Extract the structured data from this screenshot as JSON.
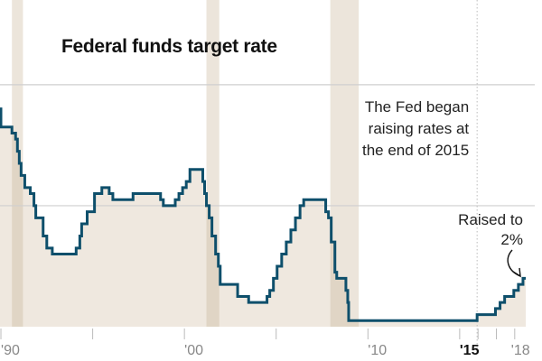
{
  "chart_data": {
    "type": "area",
    "title": "Federal funds target rate",
    "xlabel": "",
    "ylabel": "",
    "xlim": [
      1989.95,
      2018.6
    ],
    "ylim": [
      0,
      13.5
    ],
    "grid": true,
    "gridlines_y": [
      5,
      10
    ],
    "x_ticks": [
      {
        "value": 1990,
        "label": "'90",
        "bold": false
      },
      {
        "value": 1995,
        "label": "",
        "bold": false
      },
      {
        "value": 2000,
        "label": "'00",
        "bold": false
      },
      {
        "value": 2005,
        "label": "",
        "bold": false
      },
      {
        "value": 2010,
        "label": "'10",
        "bold": false
      },
      {
        "value": 2015,
        "label": "'15",
        "bold": true
      },
      {
        "value": 2016,
        "label": "",
        "bold": false
      },
      {
        "value": 2017,
        "label": "",
        "bold": false
      },
      {
        "value": 2018,
        "label": "'18",
        "bold": false
      }
    ],
    "recessions": [
      [
        1990.6,
        1991.2
      ],
      [
        2001.2,
        2001.9
      ],
      [
        2007.95,
        2009.5
      ]
    ],
    "reference_line": {
      "x": 2015.95,
      "style": "dotted"
    },
    "series": [
      {
        "name": "Federal funds target rate",
        "color": "#0e4f6b",
        "fill": "#efe8df",
        "steps": [
          [
            1989.95,
            9.0
          ],
          [
            1990.0,
            8.25
          ],
          [
            1990.6,
            8.0
          ],
          [
            1990.8,
            7.75
          ],
          [
            1990.9,
            7.25
          ],
          [
            1991.0,
            6.75
          ],
          [
            1991.1,
            6.25
          ],
          [
            1991.3,
            5.75
          ],
          [
            1991.6,
            5.5
          ],
          [
            1991.8,
            5.0
          ],
          [
            1991.9,
            4.5
          ],
          [
            1992.3,
            3.75
          ],
          [
            1992.5,
            3.25
          ],
          [
            1992.8,
            3.0
          ],
          [
            1994.1,
            3.25
          ],
          [
            1994.3,
            3.75
          ],
          [
            1994.4,
            4.25
          ],
          [
            1994.7,
            4.75
          ],
          [
            1995.1,
            5.5
          ],
          [
            1995.5,
            5.75
          ],
          [
            1995.9,
            5.5
          ],
          [
            1996.1,
            5.25
          ],
          [
            1997.2,
            5.5
          ],
          [
            1998.7,
            5.25
          ],
          [
            1998.85,
            5.0
          ],
          [
            1999.5,
            5.25
          ],
          [
            1999.7,
            5.5
          ],
          [
            1999.9,
            5.75
          ],
          [
            2000.1,
            6.0
          ],
          [
            2000.3,
            6.5
          ],
          [
            2001.0,
            6.0
          ],
          [
            2001.1,
            5.5
          ],
          [
            2001.2,
            5.0
          ],
          [
            2001.35,
            4.5
          ],
          [
            2001.5,
            3.75
          ],
          [
            2001.7,
            3.0
          ],
          [
            2001.85,
            2.5
          ],
          [
            2001.95,
            1.75
          ],
          [
            2002.9,
            1.25
          ],
          [
            2003.5,
            1.0
          ],
          [
            2004.5,
            1.25
          ],
          [
            2004.65,
            1.5
          ],
          [
            2004.85,
            2.0
          ],
          [
            2005.05,
            2.5
          ],
          [
            2005.3,
            3.0
          ],
          [
            2005.55,
            3.5
          ],
          [
            2005.8,
            4.0
          ],
          [
            2006.05,
            4.5
          ],
          [
            2006.3,
            5.0
          ],
          [
            2006.5,
            5.25
          ],
          [
            2007.7,
            4.75
          ],
          [
            2007.85,
            4.5
          ],
          [
            2008.0,
            3.5
          ],
          [
            2008.2,
            2.25
          ],
          [
            2008.3,
            2.0
          ],
          [
            2008.8,
            1.5
          ],
          [
            2008.9,
            1.0
          ],
          [
            2008.95,
            0.25
          ],
          [
            2015.95,
            0.5
          ],
          [
            2016.95,
            0.75
          ],
          [
            2017.2,
            1.0
          ],
          [
            2017.45,
            1.25
          ],
          [
            2017.95,
            1.5
          ],
          [
            2018.2,
            1.75
          ],
          [
            2018.45,
            2.0
          ],
          [
            2018.6,
            2.0
          ]
        ]
      }
    ],
    "annotations": [
      {
        "text": [
          "The Fed began",
          "raising rates at",
          "the end of 2015"
        ],
        "anchor_x": 2015.95,
        "align": "right"
      },
      {
        "text": [
          "Raised to",
          "2%"
        ],
        "anchor_x": 2018.45,
        "align": "right",
        "arrow_to": [
          2018.45,
          2.0
        ]
      }
    ]
  }
}
